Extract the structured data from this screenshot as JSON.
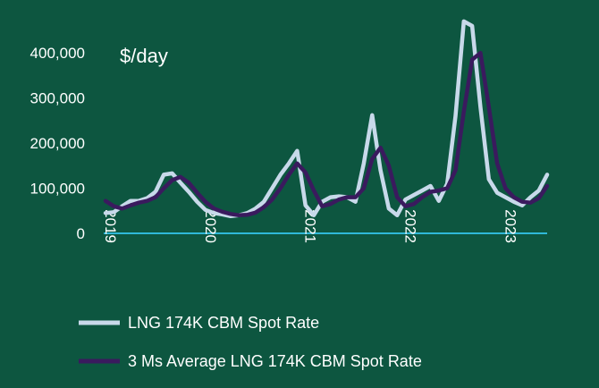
{
  "chart_data": {
    "type": "line",
    "unit_label": "$/day",
    "ylim": [
      0,
      450000
    ],
    "y_ticks": [
      {
        "value": 0,
        "label": "0"
      },
      {
        "value": 100000,
        "label": "100,000"
      },
      {
        "value": 200000,
        "label": "200,000"
      },
      {
        "value": 300000,
        "label": "300,000"
      },
      {
        "value": 400000,
        "label": "400,000"
      }
    ],
    "x_ticks": [
      {
        "value": "2019-01",
        "label": "2019"
      },
      {
        "value": "2020-01",
        "label": "2020"
      },
      {
        "value": "2021-01",
        "label": "2021"
      },
      {
        "value": "2022-01",
        "label": "2022"
      },
      {
        "value": "2023-01",
        "label": "2023"
      }
    ],
    "x": [
      "2019-01",
      "2019-02",
      "2019-03",
      "2019-04",
      "2019-05",
      "2019-06",
      "2019-07",
      "2019-08",
      "2019-09",
      "2019-10",
      "2019-11",
      "2019-12",
      "2020-01",
      "2020-02",
      "2020-03",
      "2020-04",
      "2020-05",
      "2020-06",
      "2020-07",
      "2020-08",
      "2020-09",
      "2020-10",
      "2020-11",
      "2020-12",
      "2021-01",
      "2021-02",
      "2021-03",
      "2021-04",
      "2021-05",
      "2021-06",
      "2021-07",
      "2021-08",
      "2021-09",
      "2021-10",
      "2021-11",
      "2021-12",
      "2022-01",
      "2022-02",
      "2022-03",
      "2022-04",
      "2022-05",
      "2022-06",
      "2022-07",
      "2022-08",
      "2022-09",
      "2022-10",
      "2022-11",
      "2022-12",
      "2023-01",
      "2023-02",
      "2023-03",
      "2023-04",
      "2023-05",
      "2023-06"
    ],
    "series": [
      {
        "name": "LNG 174K CBM Spot Rate",
        "color": "#c8d9ea",
        "values": [
          45000,
          47000,
          60000,
          72000,
          72000,
          78000,
          92000,
          130000,
          133000,
          112000,
          92000,
          70000,
          52000,
          45000,
          42000,
          38000,
          40000,
          45000,
          55000,
          70000,
          100000,
          130000,
          155000,
          183000,
          62000,
          40000,
          70000,
          80000,
          82000,
          80000,
          70000,
          155000,
          262000,
          140000,
          55000,
          40000,
          75000,
          85000,
          95000,
          105000,
          72000,
          110000,
          260000,
          470000,
          460000,
          280000,
          120000,
          90000,
          80000,
          70000,
          62000,
          80000,
          95000,
          130000
        ]
      },
      {
        "name": "3 Ms Average LNG 174K CBM Spot Rate",
        "color": "#3a1a5e",
        "values": [
          72000,
          60000,
          55000,
          62000,
          68000,
          72000,
          80000,
          100000,
          118000,
          125000,
          112000,
          90000,
          70000,
          55000,
          48000,
          43000,
          40000,
          41000,
          46000,
          58000,
          75000,
          100000,
          130000,
          155000,
          135000,
          95000,
          60000,
          65000,
          75000,
          80000,
          80000,
          100000,
          165000,
          190000,
          150000,
          80000,
          60000,
          65000,
          80000,
          92000,
          95000,
          100000,
          140000,
          270000,
          385000,
          400000,
          280000,
          155000,
          100000,
          80000,
          70000,
          68000,
          78000,
          105000
        ]
      }
    ]
  }
}
